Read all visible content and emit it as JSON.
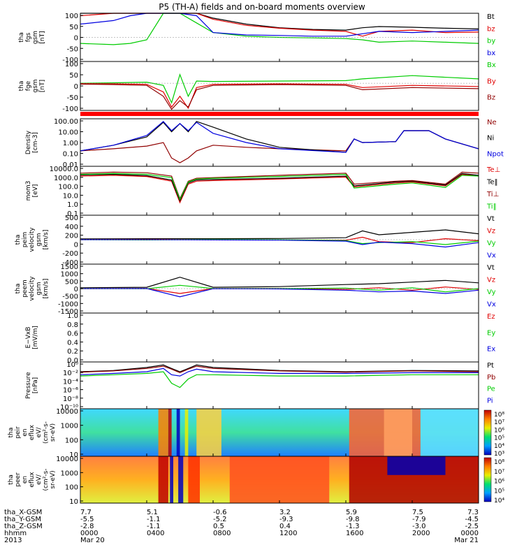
{
  "title": "P5 (TH-A) fields and on-board moments overview",
  "ephemeris": {
    "row_labels": [
      "tha_X-GSM",
      "tha_Y-GSM",
      "tha_Z-GSM",
      "hhmm",
      "2013"
    ],
    "columns": [
      {
        "x": "7.7",
        "y": "-5.5",
        "z": "-2.8",
        "hhmm": "0000",
        "date": "Mar 20"
      },
      {
        "x": "5.1",
        "y": "-1.1",
        "z": "-1.1",
        "hhmm": "0400",
        "date": ""
      },
      {
        "x": "-0.6",
        "y": "-5.2",
        "z": "0.5",
        "hhmm": "0800",
        "date": ""
      },
      {
        "x": "3.2",
        "y": "-9.3",
        "z": "0.4",
        "hhmm": "1200",
        "date": ""
      },
      {
        "x": "5.9",
        "y": "-9.8",
        "z": "-1.3",
        "hhmm": "1600",
        "date": ""
      },
      {
        "x": "7.5",
        "y": "-7.9",
        "z": "-3.0",
        "hhmm": "2000",
        "date": ""
      },
      {
        "x": "7.3",
        "y": "-4.5",
        "z": "-2.5",
        "hhmm": "0000",
        "date": "Mar 21"
      }
    ]
  },
  "colors": {
    "black": "#000000",
    "red": "#e00000",
    "green": "#00cc00",
    "blue": "#0000e0",
    "darkred": "#900000"
  },
  "chart_data": [
    {
      "type": "line",
      "ylabel": [
        "tha",
        "fgs",
        "gsm",
        "[nT]"
      ],
      "ylim": [
        -100,
        100
      ],
      "ticks": [
        "100",
        "50",
        "0",
        "-50",
        "-100"
      ],
      "legend": [
        {
          "name": "Bt",
          "color": "black"
        },
        {
          "name": "bz",
          "color": "red"
        },
        {
          "name": "by",
          "color": "green"
        },
        {
          "name": "bx",
          "color": "blue"
        }
      ],
      "x_hours": [
        0,
        2,
        3,
        4,
        5,
        6,
        7,
        8,
        10,
        12,
        14,
        16,
        17,
        18,
        20,
        22,
        24
      ],
      "series": [
        {
          "name": "Bt",
          "values": [
            100,
            100,
            100,
            100,
            100,
            100,
            100,
            80,
            55,
            40,
            33,
            30,
            40,
            45,
            42,
            38,
            35
          ]
        },
        {
          "name": "bz",
          "values": [
            90,
            100,
            100,
            100,
            100,
            100,
            100,
            75,
            50,
            38,
            30,
            25,
            5,
            25,
            30,
            20,
            22
          ]
        },
        {
          "name": "by",
          "values": [
            -25,
            -30,
            -25,
            -10,
            100,
            100,
            60,
            20,
            5,
            0,
            -2,
            -5,
            -10,
            -20,
            -15,
            -20,
            -25
          ]
        },
        {
          "name": "bx",
          "values": [
            55,
            70,
            90,
            100,
            100,
            100,
            90,
            20,
            10,
            8,
            5,
            5,
            15,
            25,
            20,
            25,
            30
          ]
        }
      ]
    },
    {
      "type": "line",
      "ylabel": [
        "tha",
        "fge",
        "gsm",
        "[nT]"
      ],
      "ylim": [
        -125,
        100
      ],
      "ticks": [
        "100",
        "50",
        "0",
        "-50",
        "-100"
      ],
      "legend": [
        {
          "name": "Bx",
          "color": "green"
        },
        {
          "name": "By",
          "color": "red"
        },
        {
          "name": "Bz",
          "color": "darkred"
        }
      ],
      "x_hours": [
        0,
        2,
        4,
        5,
        5.5,
        6,
        6.5,
        7,
        8,
        12,
        16,
        17,
        20,
        24
      ],
      "series": [
        {
          "name": "Bx",
          "values": [
            0,
            2,
            5,
            -10,
            -90,
            40,
            -60,
            10,
            8,
            10,
            12,
            20,
            35,
            20
          ]
        },
        {
          "name": "By",
          "values": [
            -2,
            -3,
            -5,
            -40,
            -110,
            -60,
            -115,
            -20,
            -5,
            -3,
            -5,
            -20,
            -10,
            -15
          ]
        },
        {
          "name": "Bz",
          "values": [
            -4,
            -6,
            -10,
            -60,
            -120,
            -80,
            -110,
            -30,
            -10,
            -6,
            -10,
            -30,
            -20,
            -25
          ]
        }
      ]
    },
    {
      "type": "line",
      "scale": "log",
      "ylabel": [
        "Density",
        "[cm-3]"
      ],
      "ylim": [
        0.01,
        100
      ],
      "ticks": [
        "100.00",
        "10.00",
        "1.00",
        "0.10",
        "0.01"
      ],
      "legend": [
        {
          "name": "Ne",
          "color": "darkred"
        },
        {
          "name": "Ni",
          "color": "black"
        },
        {
          "name": "Npot",
          "color": "blue"
        }
      ],
      "x_hours": [
        0,
        2,
        4,
        5,
        5.5,
        6,
        6.5,
        7,
        8,
        10,
        12,
        16,
        16.5,
        17,
        19,
        19.5,
        21,
        22,
        24
      ],
      "series": [
        {
          "name": "Ne",
          "values": [
            0.2,
            0.3,
            0.5,
            1.0,
            0.05,
            0.02,
            0.05,
            0.2,
            0.6,
            0.4,
            0.3,
            0.2,
            2.0,
            1.0,
            1.2,
            10,
            10,
            2.0,
            0.3
          ]
        },
        {
          "name": "Ni",
          "values": [
            0.2,
            0.6,
            3.0,
            50,
            8,
            40,
            8,
            60,
            20,
            2.0,
            0.4,
            0.15,
            2.0,
            1.0,
            1.2,
            10,
            10,
            2.0,
            0.3
          ]
        },
        {
          "name": "Npot",
          "values": [
            0.2,
            0.6,
            4.0,
            60,
            10,
            40,
            10,
            50,
            6,
            1.0,
            0.3,
            0.15,
            2.0,
            1.0,
            1.2,
            10,
            10,
            2.0,
            0.3
          ]
        }
      ]
    },
    {
      "type": "line",
      "scale": "log",
      "ylabel": [
        "mom3",
        "[eV]"
      ],
      "ylim": [
        0.1,
        10000
      ],
      "ticks": [
        "10000.0",
        "1000.0",
        "100.0",
        "10.0",
        "1.0",
        "0.1"
      ],
      "legend": [
        {
          "name": "Te⊥",
          "color": "red"
        },
        {
          "name": "Te‖",
          "color": "black"
        },
        {
          "name": "Ti⊥",
          "color": "darkred"
        },
        {
          "name": "Ti‖",
          "color": "green"
        }
      ],
      "x_hours": [
        0,
        2,
        4,
        5.5,
        6,
        6.5,
        7,
        8,
        12,
        16,
        16.5,
        19,
        20,
        22,
        23,
        24
      ],
      "series": [
        {
          "name": "Te⊥",
          "values": [
            1000,
            1200,
            900,
            300,
            2,
            150,
            300,
            350,
            500,
            800,
            80,
            200,
            250,
            100,
            1500,
            1000
          ]
        },
        {
          "name": "Te‖",
          "values": [
            1300,
            1500,
            1100,
            400,
            3,
            200,
            400,
            450,
            600,
            1000,
            100,
            250,
            300,
            120,
            1800,
            1200
          ]
        },
        {
          "name": "Ti⊥",
          "values": [
            2000,
            2500,
            2200,
            1000,
            5,
            300,
            600,
            700,
            1200,
            2000,
            150,
            300,
            350,
            150,
            2500,
            2000
          ]
        },
        {
          "name": "Ti‖",
          "values": [
            1500,
            1800,
            1500,
            700,
            4,
            250,
            500,
            600,
            900,
            1500,
            60,
            150,
            200,
            70,
            1200,
            1000
          ]
        }
      ]
    },
    {
      "type": "line",
      "ylabel": [
        "tha",
        "peim",
        "velocity",
        "gsm",
        "[km/s]"
      ],
      "ylim": [
        -500,
        500
      ],
      "ticks": [
        "500",
        "400",
        "200",
        "0",
        "-200",
        "-400"
      ],
      "legend": [
        {
          "name": "Vt",
          "color": "black"
        },
        {
          "name": "Vz",
          "color": "red"
        },
        {
          "name": "Vy",
          "color": "green"
        },
        {
          "name": "Vx",
          "color": "blue"
        }
      ],
      "x_hours": [
        0,
        4,
        8,
        12,
        16,
        17,
        18,
        20,
        22,
        24
      ],
      "series": [
        {
          "name": "Vt",
          "values": [
            15,
            20,
            20,
            25,
            40,
            180,
            100,
            150,
            200,
            120
          ]
        },
        {
          "name": "Vz",
          "values": [
            0,
            5,
            0,
            -5,
            -10,
            50,
            -40,
            -60,
            20,
            -20
          ]
        },
        {
          "name": "Vy",
          "values": [
            0,
            -5,
            5,
            0,
            -20,
            -80,
            -60,
            -40,
            -100,
            -30
          ]
        },
        {
          "name": "Vx",
          "values": [
            0,
            0,
            -5,
            -10,
            -30,
            -100,
            -50,
            -80,
            -150,
            -60
          ]
        }
      ]
    },
    {
      "type": "line",
      "ylabel": [
        "tha",
        "peem",
        "velocity",
        "gsm",
        "[km/s]"
      ],
      "ylim": [
        -1500,
        1500
      ],
      "ticks": [
        "1500",
        "1000",
        "500",
        "0",
        "-500",
        "-1000",
        "-1500"
      ],
      "legend": [
        {
          "name": "Vt",
          "color": "black"
        },
        {
          "name": "Vz",
          "color": "red"
        },
        {
          "name": "Vy",
          "color": "green"
        },
        {
          "name": "Vx",
          "color": "blue"
        }
      ],
      "x_hours": [
        0,
        4,
        6,
        8,
        12,
        16,
        18,
        20,
        22,
        24
      ],
      "series": [
        {
          "name": "Vt",
          "values": [
            50,
            80,
            700,
            80,
            120,
            250,
            300,
            400,
            500,
            350
          ]
        },
        {
          "name": "Vz",
          "values": [
            0,
            10,
            -300,
            0,
            10,
            -50,
            50,
            -100,
            100,
            -50
          ]
        },
        {
          "name": "Vy",
          "values": [
            0,
            -10,
            200,
            10,
            0,
            30,
            -100,
            50,
            -200,
            0
          ]
        },
        {
          "name": "Vx",
          "values": [
            0,
            5,
            -500,
            -10,
            -20,
            -100,
            -200,
            -150,
            -300,
            -100
          ]
        }
      ]
    },
    {
      "type": "line",
      "ylabel": [
        "E−VxB",
        "[mV/m]"
      ],
      "ylim": [
        0,
        1
      ],
      "ticks": [
        "1.0",
        "0.8",
        "0.6",
        "0.4",
        "0.2",
        "0.0"
      ],
      "legend": [
        {
          "name": "Ez",
          "color": "red"
        },
        {
          "name": "Ey",
          "color": "green"
        },
        {
          "name": "Ex",
          "color": "blue"
        }
      ],
      "series": []
    },
    {
      "type": "line",
      "scale": "log",
      "ylabel": [
        "Pressure",
        "[nPa]"
      ],
      "ylim": [
        1e-10,
        10
      ],
      "ticks": [
        "10⁰",
        "10⁻²",
        "10⁻⁴",
        "10⁻⁶",
        "10⁻⁸",
        "10⁻¹⁰"
      ],
      "legend": [
        {
          "name": "Pt",
          "color": "black"
        },
        {
          "name": "Pb",
          "color": "darkred"
        },
        {
          "name": "Pe",
          "color": "green"
        },
        {
          "name": "Pi",
          "color": "blue"
        }
      ],
      "x_hours": [
        0,
        2,
        4,
        5,
        5.5,
        6,
        6.5,
        7,
        8,
        12,
        16,
        20,
        24
      ],
      "series": [
        {
          "name": "Pt",
          "values": [
            0.05,
            0.1,
            0.5,
            2,
            0.3,
            0.05,
            0.3,
            2,
            0.5,
            0.1,
            0.05,
            0.1,
            0.08
          ]
        },
        {
          "name": "Pb",
          "values": [
            0.04,
            0.08,
            0.3,
            1,
            0.2,
            0.03,
            0.2,
            1,
            0.3,
            0.08,
            0.04,
            0.08,
            0.05
          ]
        },
        {
          "name": "Pe",
          "values": [
            0.005,
            0.01,
            0.02,
            0.05,
            0.0001,
            1e-05,
            0.001,
            0.01,
            0.01,
            0.005,
            0.005,
            0.01,
            0.01
          ]
        },
        {
          "name": "Pi",
          "values": [
            0.01,
            0.02,
            0.05,
            0.3,
            0.01,
            0.005,
            0.05,
            0.2,
            0.05,
            0.02,
            0.02,
            0.03,
            0.03
          ]
        }
      ]
    },
    {
      "type": "heatmap",
      "ylabel": [
        "tha",
        "peir",
        "en",
        "eflux",
        "eV/",
        "(cm²-s-",
        "sr-eV)"
      ],
      "ylim": [
        10,
        20000
      ],
      "ticks": [
        "10000",
        "1000",
        "100",
        "10"
      ],
      "colorbar_ticks": [
        "10⁸",
        "10⁷",
        "10⁶",
        "10⁵",
        "10⁴",
        "10³"
      ]
    },
    {
      "type": "heatmap",
      "ylabel": [
        "tha",
        "peer",
        "en",
        "eflux",
        "eV/",
        "(cm²-s-",
        "sr-eV)"
      ],
      "ylim": [
        10,
        20000
      ],
      "ticks": [
        "10000",
        "1000",
        "100",
        "10"
      ],
      "colorbar_ticks": [
        "10⁸",
        "10⁷",
        "10⁶",
        "10⁵",
        "10⁴"
      ]
    }
  ]
}
